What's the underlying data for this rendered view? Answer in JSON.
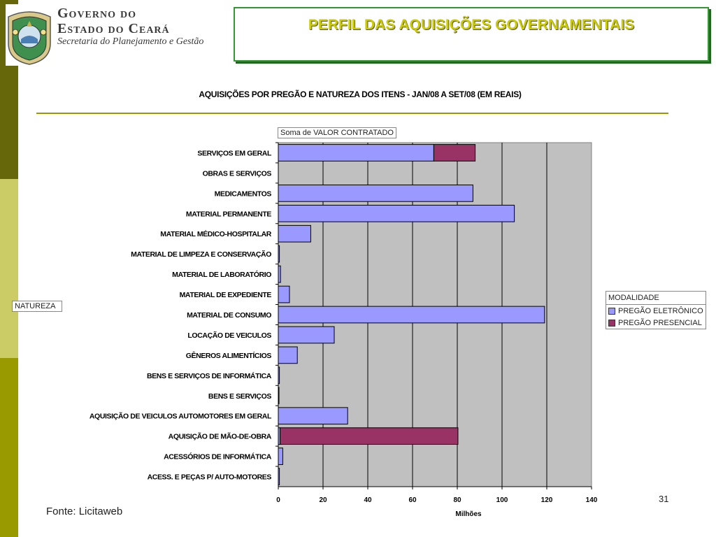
{
  "header": {
    "org_line1": "Governo do",
    "org_line2": "Estado do Ceará",
    "org_line3": "Secretaria do Planejamento e Gestão",
    "slide_title": "PERFIL DAS AQUISIÇÕES GOVERNAMENTAIS"
  },
  "pivot": {
    "data_field": "Soma de VALOR CONTRATADO",
    "row_field": "NATUREZA",
    "legend_field": "MODALIDADE"
  },
  "footer": {
    "source": "Fonte: Licitaweb",
    "page_number": "31"
  },
  "colors": {
    "eletronico": "#9999ff",
    "presencial": "#993366",
    "plot_bg": "#c0c0c0",
    "accent": "#999900"
  },
  "chart_data": {
    "type": "bar",
    "orientation": "horizontal",
    "stacked": true,
    "title": "AQUISIÇÕES POR PREGÃO E NATUREZA DOS ITENS - JAN/08 A SET/08 (EM REAIS)",
    "xlabel": "Milhões",
    "ylabel": "",
    "xlim": [
      0,
      140
    ],
    "xticks": [
      0,
      20,
      40,
      60,
      80,
      100,
      120,
      140
    ],
    "grid": true,
    "legend_position": "right",
    "categories": [
      "SERVIÇOS EM GERAL",
      "OBRAS E SERVIÇOS",
      "MEDICAMENTOS",
      "MATERIAL PERMANENTE",
      "MATERIAL MÉDICO-HOSPITALAR",
      "MATERIAL DE LIMPEZA E CONSERVAÇÃO",
      "MATERIAL DE LABORATÓRIO",
      "MATERIAL DE EXPEDIENTE",
      "MATERIAL DE CONSUMO",
      "LOCAÇÃO DE VEICULOS",
      "GÊNEROS ALIMENTÍCIOS",
      "BENS E SERVIÇOS DE INFORMÁTICA",
      "BENS E SERVIÇOS",
      "AQUISIÇÃO DE VEICULOS AUTOMOTORES EM GERAL",
      "AQUISIÇÃO DE MÃO-DE-OBRA",
      "ACESSÓRIOS DE INFORMÁTICA",
      "ACESS. E PEÇAS P/ AUTO-MOTORES"
    ],
    "series": [
      {
        "name": "PREGÃO ELETRÔNICO",
        "values": [
          69.5,
          0,
          87,
          105.5,
          14.5,
          0.5,
          1,
          5,
          119,
          25,
          8.5,
          0.5,
          0.3,
          31,
          0.8,
          2,
          0.5
        ]
      },
      {
        "name": "PREGÃO PRESENCIAL",
        "values": [
          18.5,
          0,
          0,
          0,
          0,
          0,
          0,
          0,
          0,
          0,
          0,
          0,
          0,
          0,
          79.5,
          0,
          0
        ]
      }
    ]
  }
}
